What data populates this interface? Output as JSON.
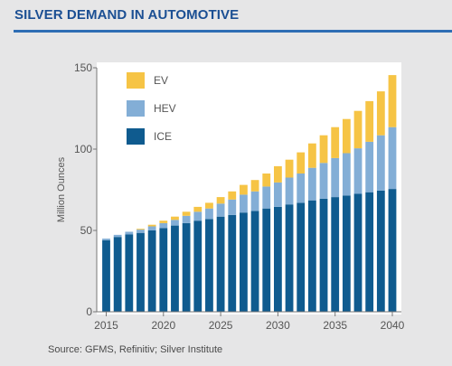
{
  "title": "SILVER DEMAND IN AUTOMOTIVE",
  "source": "Source: GFMS, Refinitiv; Silver Institute",
  "chart_data": {
    "type": "bar",
    "stacked": true,
    "ylabel": "Million Ounces",
    "ylim": [
      0,
      150
    ],
    "yticks": [
      0,
      50,
      100,
      150
    ],
    "x_tick_labels": [
      "2015",
      "2020",
      "2025",
      "2030",
      "2035",
      "2040"
    ],
    "categories": [
      2015,
      2016,
      2017,
      2018,
      2019,
      2020,
      2021,
      2022,
      2023,
      2024,
      2025,
      2026,
      2027,
      2028,
      2029,
      2030,
      2031,
      2032,
      2033,
      2034,
      2035,
      2036,
      2037,
      2038,
      2039,
      2040
    ],
    "legend_position": "top-left",
    "grid": false,
    "series": [
      {
        "name": "ICE",
        "color": "#0f5b8f",
        "values": [
          44,
          46,
          47.5,
          48.5,
          50,
          51.5,
          53,
          54.5,
          56,
          57,
          58.5,
          59.5,
          61,
          62,
          63.5,
          64.5,
          66,
          67,
          68.5,
          69.5,
          70.5,
          71.5,
          72.5,
          73.5,
          74.5,
          75.5
        ]
      },
      {
        "name": "HEV",
        "color": "#83aed6",
        "values": [
          1,
          1.3,
          1.7,
          2,
          2.5,
          3,
          3.5,
          4.5,
          5.5,
          6.5,
          8,
          9.5,
          11,
          12,
          13.5,
          15,
          16.5,
          18,
          20,
          22,
          24,
          26,
          28,
          31,
          34,
          38
        ]
      },
      {
        "name": "EV",
        "color": "#f6c445",
        "values": [
          0,
          0,
          0,
          0.5,
          1,
          1.5,
          2,
          2.5,
          3,
          3.5,
          4,
          5,
          6,
          7,
          8,
          10,
          11,
          13,
          15,
          17,
          19,
          21,
          23,
          25,
          27,
          32
        ]
      }
    ]
  }
}
